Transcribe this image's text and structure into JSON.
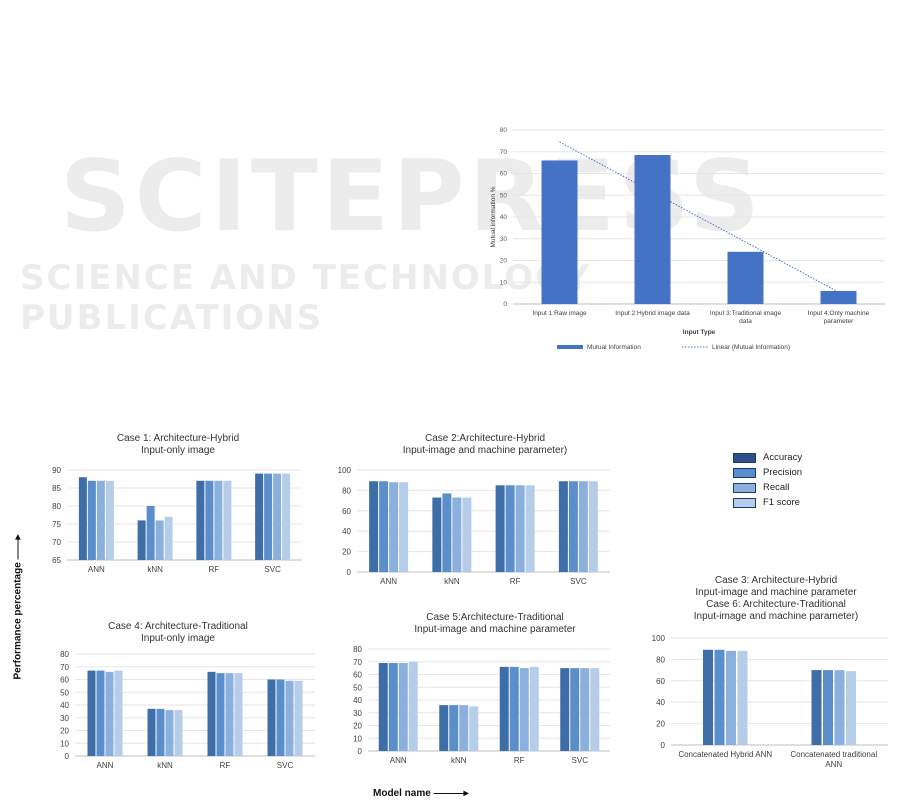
{
  "watermark": {
    "main": "SCITEPRESS",
    "sub": "SCIENCE AND TECHNOLOGY PUBLICATIONS"
  },
  "colors": {
    "accuracy": "#3e6ea8",
    "precision": "#5b8fcc",
    "recall": "#8cb0de",
    "f1": "#b6cde9",
    "mi_bar": "#4472c4",
    "trend": "#4472c4",
    "grid": "#e6e6e6",
    "axis": "#bfbfbf"
  },
  "legend": [
    "Accuracy",
    "Precision",
    "Recall",
    "F1 score"
  ],
  "axis_labels": {
    "y": "Performance percentage",
    "x": "Model name"
  },
  "chart_data": [
    {
      "id": "mi",
      "type": "bar",
      "title": "",
      "xlabel": "Input Type",
      "ylabel": "Mutual information %",
      "categories": [
        "Input 1:Raw image",
        "Input 2:Hybrid image data",
        "Input 3:Traditional image data",
        "Input 4:Only machine parameter"
      ],
      "category_lines": [
        [
          "Input 1:Raw image"
        ],
        [
          "Input 2:Hybrid image data"
        ],
        [
          "Input 3:Traditional image",
          "data"
        ],
        [
          "Input 4:Only machine",
          "parameter"
        ]
      ],
      "series": [
        {
          "name": "Mutual Information",
          "values": [
            66,
            68.5,
            24,
            6
          ]
        }
      ],
      "trendline": {
        "name": "Linear (Mutual Information)",
        "start": 74.5,
        "end": 5.5
      },
      "ylim": [
        0,
        80
      ],
      "yticks": [
        "0",
        "10",
        "20",
        "30",
        "40",
        "50",
        "60",
        "70",
        "80"
      ],
      "grid": true,
      "legend_position": "bottom"
    },
    {
      "id": "case1",
      "type": "bar",
      "title_lines": [
        "Case 1: Architecture-Hybrid",
        "Input-only image"
      ],
      "categories": [
        "ANN",
        "kNN",
        "RF",
        "SVC"
      ],
      "series": [
        {
          "name": "Accuracy",
          "values": [
            88,
            76,
            87,
            89
          ]
        },
        {
          "name": "Precision",
          "values": [
            87,
            80,
            87,
            89
          ]
        },
        {
          "name": "Recall",
          "values": [
            87,
            76,
            87,
            89
          ]
        },
        {
          "name": "F1 score",
          "values": [
            87,
            77,
            87,
            89
          ]
        }
      ],
      "ylim": [
        65,
        90
      ],
      "yticks": [
        "65",
        "70",
        "75",
        "80",
        "85",
        "90"
      ]
    },
    {
      "id": "case2",
      "type": "bar",
      "title_lines": [
        "Case 2:Architecture-Hybrid",
        "Input-image and machine parameter)"
      ],
      "categories": [
        "ANN",
        "kNN",
        "RF",
        "SVC"
      ],
      "series": [
        {
          "name": "Accuracy",
          "values": [
            89,
            73,
            85,
            89
          ]
        },
        {
          "name": "Precision",
          "values": [
            89,
            77,
            85,
            89
          ]
        },
        {
          "name": "Recall",
          "values": [
            88,
            73,
            85,
            89
          ]
        },
        {
          "name": "F1 score",
          "values": [
            88,
            73,
            85,
            89
          ]
        }
      ],
      "ylim": [
        0,
        100
      ],
      "yticks": [
        "0",
        "20",
        "40",
        "60",
        "80",
        "100"
      ]
    },
    {
      "id": "case4",
      "type": "bar",
      "title_lines": [
        "Case 4: Architecture-Traditional",
        "Input-only image"
      ],
      "categories": [
        "ANN",
        "kNN",
        "RF",
        "SVC"
      ],
      "series": [
        {
          "name": "Accuracy",
          "values": [
            67,
            37,
            66,
            60
          ]
        },
        {
          "name": "Precision",
          "values": [
            67,
            37,
            65,
            60
          ]
        },
        {
          "name": "Recall",
          "values": [
            66,
            36,
            65,
            59
          ]
        },
        {
          "name": "F1 score",
          "values": [
            67,
            36,
            65,
            59
          ]
        }
      ],
      "ylim": [
        0,
        80
      ],
      "yticks": [
        "0",
        "10",
        "20",
        "30",
        "40",
        "50",
        "60",
        "70",
        "80"
      ]
    },
    {
      "id": "case5",
      "type": "bar",
      "title_lines": [
        "Case 5:Architecture-Traditional",
        "Input-image and machine parameter"
      ],
      "categories": [
        "ANN",
        "kNN",
        "RF",
        "SVC"
      ],
      "series": [
        {
          "name": "Accuracy",
          "values": [
            69,
            36,
            66,
            65
          ]
        },
        {
          "name": "Precision",
          "values": [
            69,
            36,
            66,
            65
          ]
        },
        {
          "name": "Recall",
          "values": [
            69,
            36,
            65,
            65
          ]
        },
        {
          "name": "F1 score",
          "values": [
            70,
            35,
            66,
            65
          ]
        }
      ],
      "ylim": [
        0,
        80
      ],
      "yticks": [
        "0",
        "10",
        "20",
        "30",
        "40",
        "50",
        "60",
        "70",
        "80"
      ]
    },
    {
      "id": "case36",
      "type": "bar",
      "title_lines": [
        "Case 3: Architecture-Hybrid",
        "Input-image and machine parameter",
        "Case 6: Architecture-Traditional",
        "Input-image and machine parameter)"
      ],
      "categories": [
        "Concatenated Hybrid ANN",
        "Concatenated traditional ANN"
      ],
      "category_lines": [
        [
          "Concatenated Hybrid ANN"
        ],
        [
          "Concatenated traditional",
          "ANN"
        ]
      ],
      "series": [
        {
          "name": "Accuracy",
          "values": [
            89,
            70
          ]
        },
        {
          "name": "Precision",
          "values": [
            89,
            70
          ]
        },
        {
          "name": "Recall",
          "values": [
            88,
            70
          ]
        },
        {
          "name": "F1 score",
          "values": [
            88,
            69
          ]
        }
      ],
      "ylim": [
        0,
        100
      ],
      "yticks": [
        "0",
        "20",
        "40",
        "60",
        "80",
        "100"
      ]
    }
  ]
}
